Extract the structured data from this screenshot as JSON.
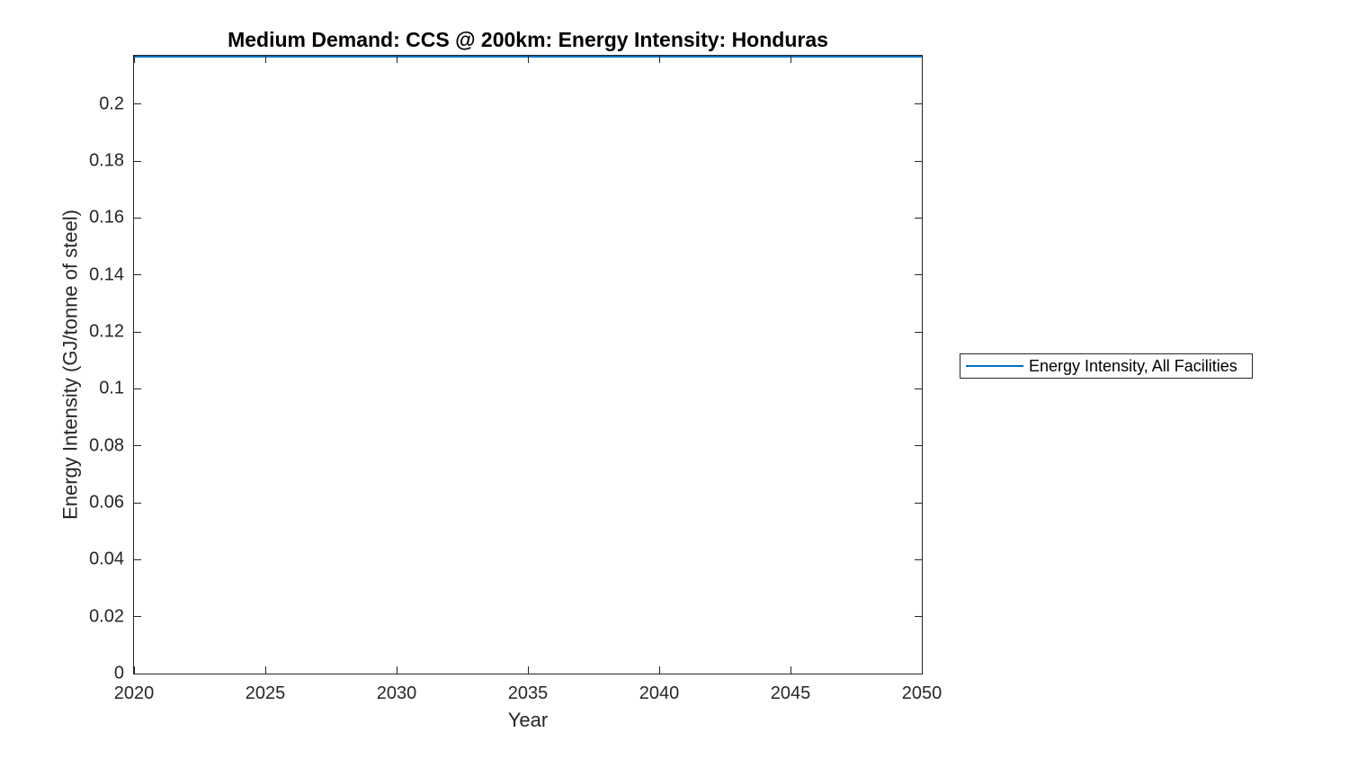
{
  "chart_data": {
    "type": "line",
    "title": "Medium Demand: CCS @ 200km: Energy Intensity: Honduras",
    "xlabel": "Year",
    "ylabel": "Energy Intensity (GJ/tonne of steel)",
    "xlim": [
      2020,
      2050
    ],
    "ylim": [
      0,
      0.217
    ],
    "xticks": [
      2020,
      2025,
      2030,
      2035,
      2040,
      2045,
      2050
    ],
    "xtick_labels": [
      "2020",
      "2025",
      "2030",
      "2035",
      "2040",
      "2045",
      "2050"
    ],
    "yticks": [
      0,
      0.02,
      0.04,
      0.06,
      0.08,
      0.1,
      0.12,
      0.14,
      0.16,
      0.18,
      0.2
    ],
    "ytick_labels": [
      "0",
      "0.02",
      "0.04",
      "0.06",
      "0.08",
      "0.1",
      "0.12",
      "0.14",
      "0.16",
      "0.18",
      "0.2"
    ],
    "grid": false,
    "legend": {
      "position": "outside-right",
      "entries": [
        {
          "label": "Energy Intensity, All Facilities",
          "color": "#0072BD"
        }
      ]
    },
    "series": [
      {
        "name": "Energy Intensity, All Facilities",
        "color": "#0072BD",
        "x": [
          2020,
          2050
        ],
        "y": [
          0.217,
          0.217
        ]
      }
    ]
  },
  "colors": {
    "line_blue": "#0072BD",
    "axis": "#262626",
    "title_text": "#000000",
    "background": "#ffffff"
  }
}
